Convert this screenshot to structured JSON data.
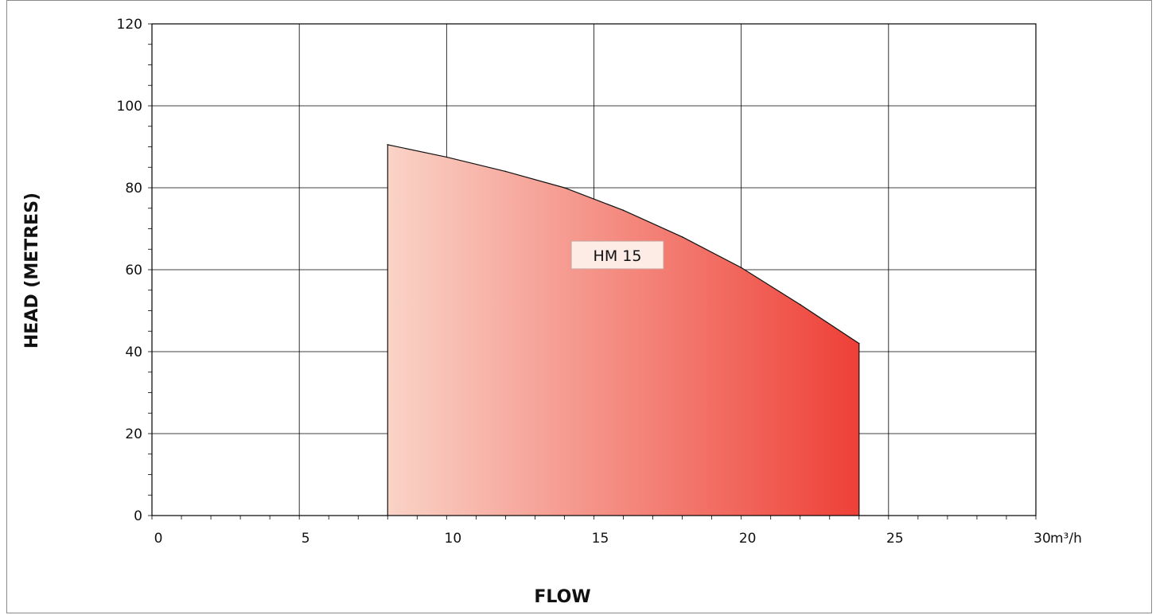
{
  "chart_data": {
    "type": "area",
    "xlabel": "FLOW",
    "ylabel": "HEAD (METRES)",
    "x_unit": "m³/h",
    "xlim": [
      0,
      30
    ],
    "ylim": [
      0,
      120
    ],
    "x_ticks": [
      0,
      5,
      10,
      15,
      20,
      25,
      30
    ],
    "y_ticks": [
      0,
      20,
      40,
      60,
      80,
      100,
      120
    ],
    "grid": true,
    "series": [
      {
        "name": "HM 15",
        "x": [
          8,
          10,
          12,
          14,
          16,
          18,
          20,
          22,
          24
        ],
        "y": [
          90.5,
          87.5,
          84,
          80,
          74.5,
          68,
          60.5,
          51.5,
          42
        ],
        "fill_start_color": "#fad3c7",
        "fill_end_color": "#ee4037"
      }
    ]
  }
}
